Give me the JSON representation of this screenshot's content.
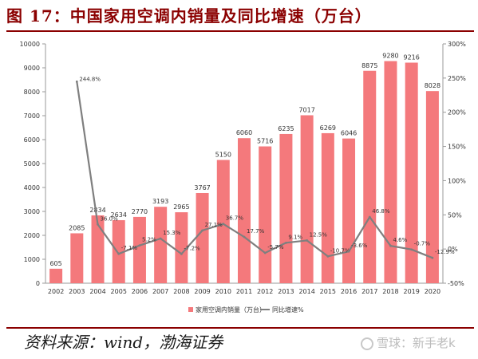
{
  "figure": {
    "title": "图 17：中国家用空调内销量及同比增速（万台）",
    "source": "资料来源：wind，渤海证券",
    "watermark": "雪球：新手老k"
  },
  "chart_data": {
    "type": "bar",
    "categories": [
      "2002",
      "2003",
      "2004",
      "2005",
      "2006",
      "2007",
      "2008",
      "2009",
      "2010",
      "2011",
      "2012",
      "2013",
      "2014",
      "2015",
      "2016",
      "2017",
      "2018",
      "2019",
      "2020"
    ],
    "series": [
      {
        "name": "家用空调内销量（万台）",
        "type": "bar",
        "axis": "left",
        "color": "#f4797c",
        "values": [
          605,
          2085,
          2834,
          2634,
          2770,
          3193,
          2965,
          3767,
          5150,
          6060,
          5716,
          6235,
          7017,
          6269,
          6046,
          8875,
          9280,
          9216,
          8028
        ],
        "labels": [
          "605",
          "2085",
          "2834",
          "2634",
          "2770",
          "3193",
          "2965",
          "3767",
          "5150",
          "6060",
          "5716",
          "6235",
          "7017",
          "6269",
          "6046",
          "8875",
          "9280",
          "9216",
          "8028"
        ]
      },
      {
        "name": "同比增速%",
        "type": "line",
        "axis": "right",
        "color": "#7f7f7f",
        "values": [
          null,
          244.8,
          36.0,
          -7.1,
          5.2,
          15.3,
          -7.2,
          27.1,
          36.7,
          17.7,
          -5.7,
          9.1,
          12.5,
          -10.7,
          -3.6,
          46.8,
          4.6,
          -0.7,
          -12.9
        ],
        "labels": [
          null,
          "244.8%",
          "36.0%",
          "-7.1%",
          "5.2%",
          "15.3%",
          "-7.2%",
          "27.1%",
          "36.7%",
          "17.7%",
          "-5.7%",
          "9.1%",
          "12.5%",
          "-10.7%",
          "-3.6%",
          "46.8%",
          "4.6%",
          "-0.7%",
          "-12.9%"
        ]
      }
    ],
    "y_left": {
      "min": 0,
      "max": 10000,
      "ticks": [
        "0",
        "1000",
        "2000",
        "3000",
        "4000",
        "5000",
        "6000",
        "7000",
        "8000",
        "9000",
        "10000"
      ]
    },
    "y_right": {
      "min": -50,
      "max": 300,
      "ticks": [
        "-50%",
        "0%",
        "50%",
        "100%",
        "150%",
        "200%",
        "250%",
        "300%"
      ]
    },
    "legend": {
      "placement": "bottom"
    },
    "grid": false
  }
}
